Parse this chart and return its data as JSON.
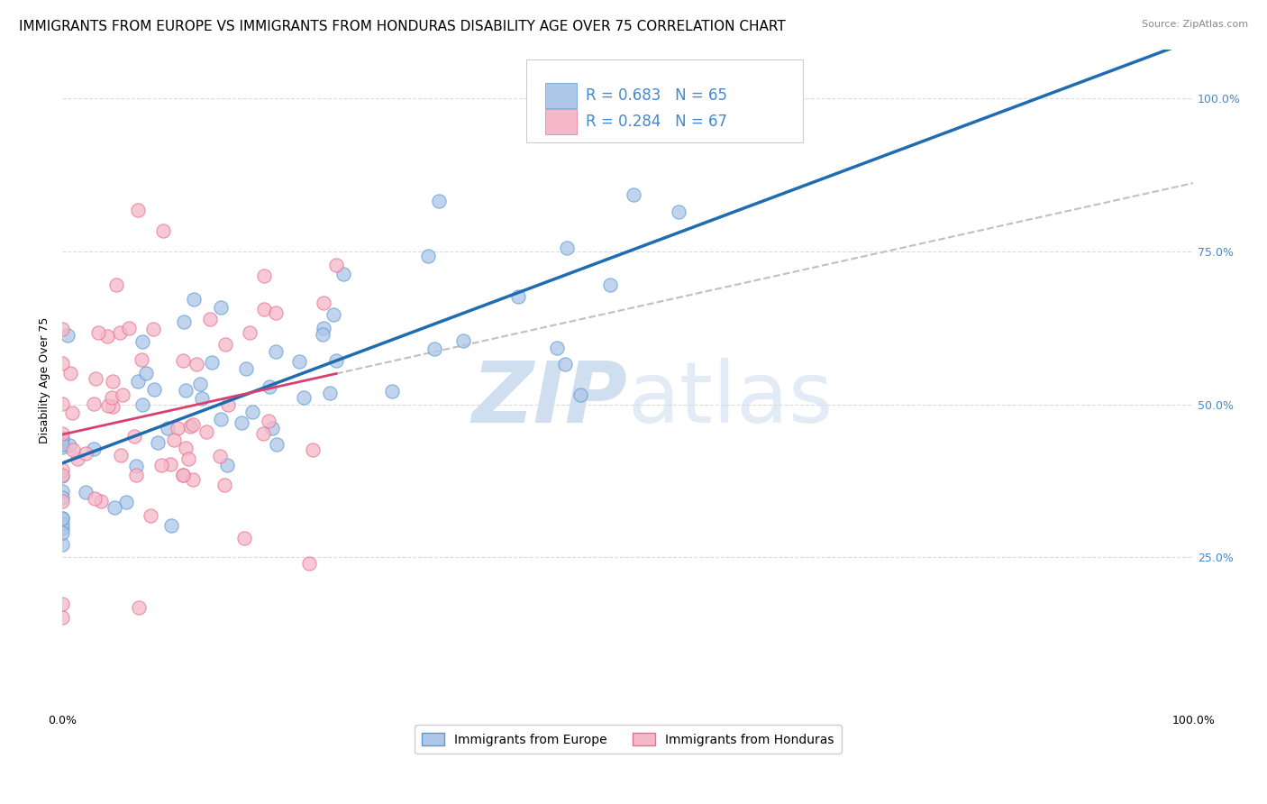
{
  "title": "IMMIGRANTS FROM EUROPE VS IMMIGRANTS FROM HONDURAS DISABILITY AGE OVER 75 CORRELATION CHART",
  "source": "Source: ZipAtlas.com",
  "ylabel": "Disability Age Over 75",
  "xlim": [
    0.0,
    1.0
  ],
  "ylim": [
    0.0,
    1.08
  ],
  "ytick_values": [
    0.0,
    0.25,
    0.5,
    0.75,
    1.0
  ],
  "ytick_labels_right": [
    "",
    "25.0%",
    "50.0%",
    "75.0%",
    "100.0%"
  ],
  "xtick_values": [
    0.0,
    0.2,
    0.4,
    0.6,
    0.8,
    1.0
  ],
  "xtick_labels": [
    "0.0%",
    "",
    "",
    "",
    "",
    "100.0%"
  ],
  "europe_color": "#aec6e8",
  "europe_edge_color": "#5b9bd5",
  "honduras_color": "#f5b8c8",
  "honduras_edge_color": "#e87090",
  "europe_line_color": "#1f6cb0",
  "honduras_line_color": "#d94070",
  "dashed_line_color": "#c0c0c0",
  "legend_R_europe": "R = 0.683",
  "legend_N_europe": "N = 65",
  "legend_R_honduras": "R = 0.284",
  "legend_N_honduras": "N = 67",
  "watermark_zip": "ZIP",
  "watermark_atlas": "atlas",
  "watermark_color": "#d0dff0",
  "title_fontsize": 11,
  "axis_label_fontsize": 9,
  "tick_fontsize": 9,
  "europe_R": 0.683,
  "europe_N": 65,
  "honduras_R": 0.284,
  "honduras_N": 67,
  "grid_color": "#d8d8d8",
  "background_color": "#ffffff",
  "right_tick_color": "#4488cc",
  "legend_text_color": "#4488cc",
  "bottom_legend_label_europe": "Immigrants from Europe",
  "bottom_legend_label_honduras": "Immigrants from Honduras"
}
